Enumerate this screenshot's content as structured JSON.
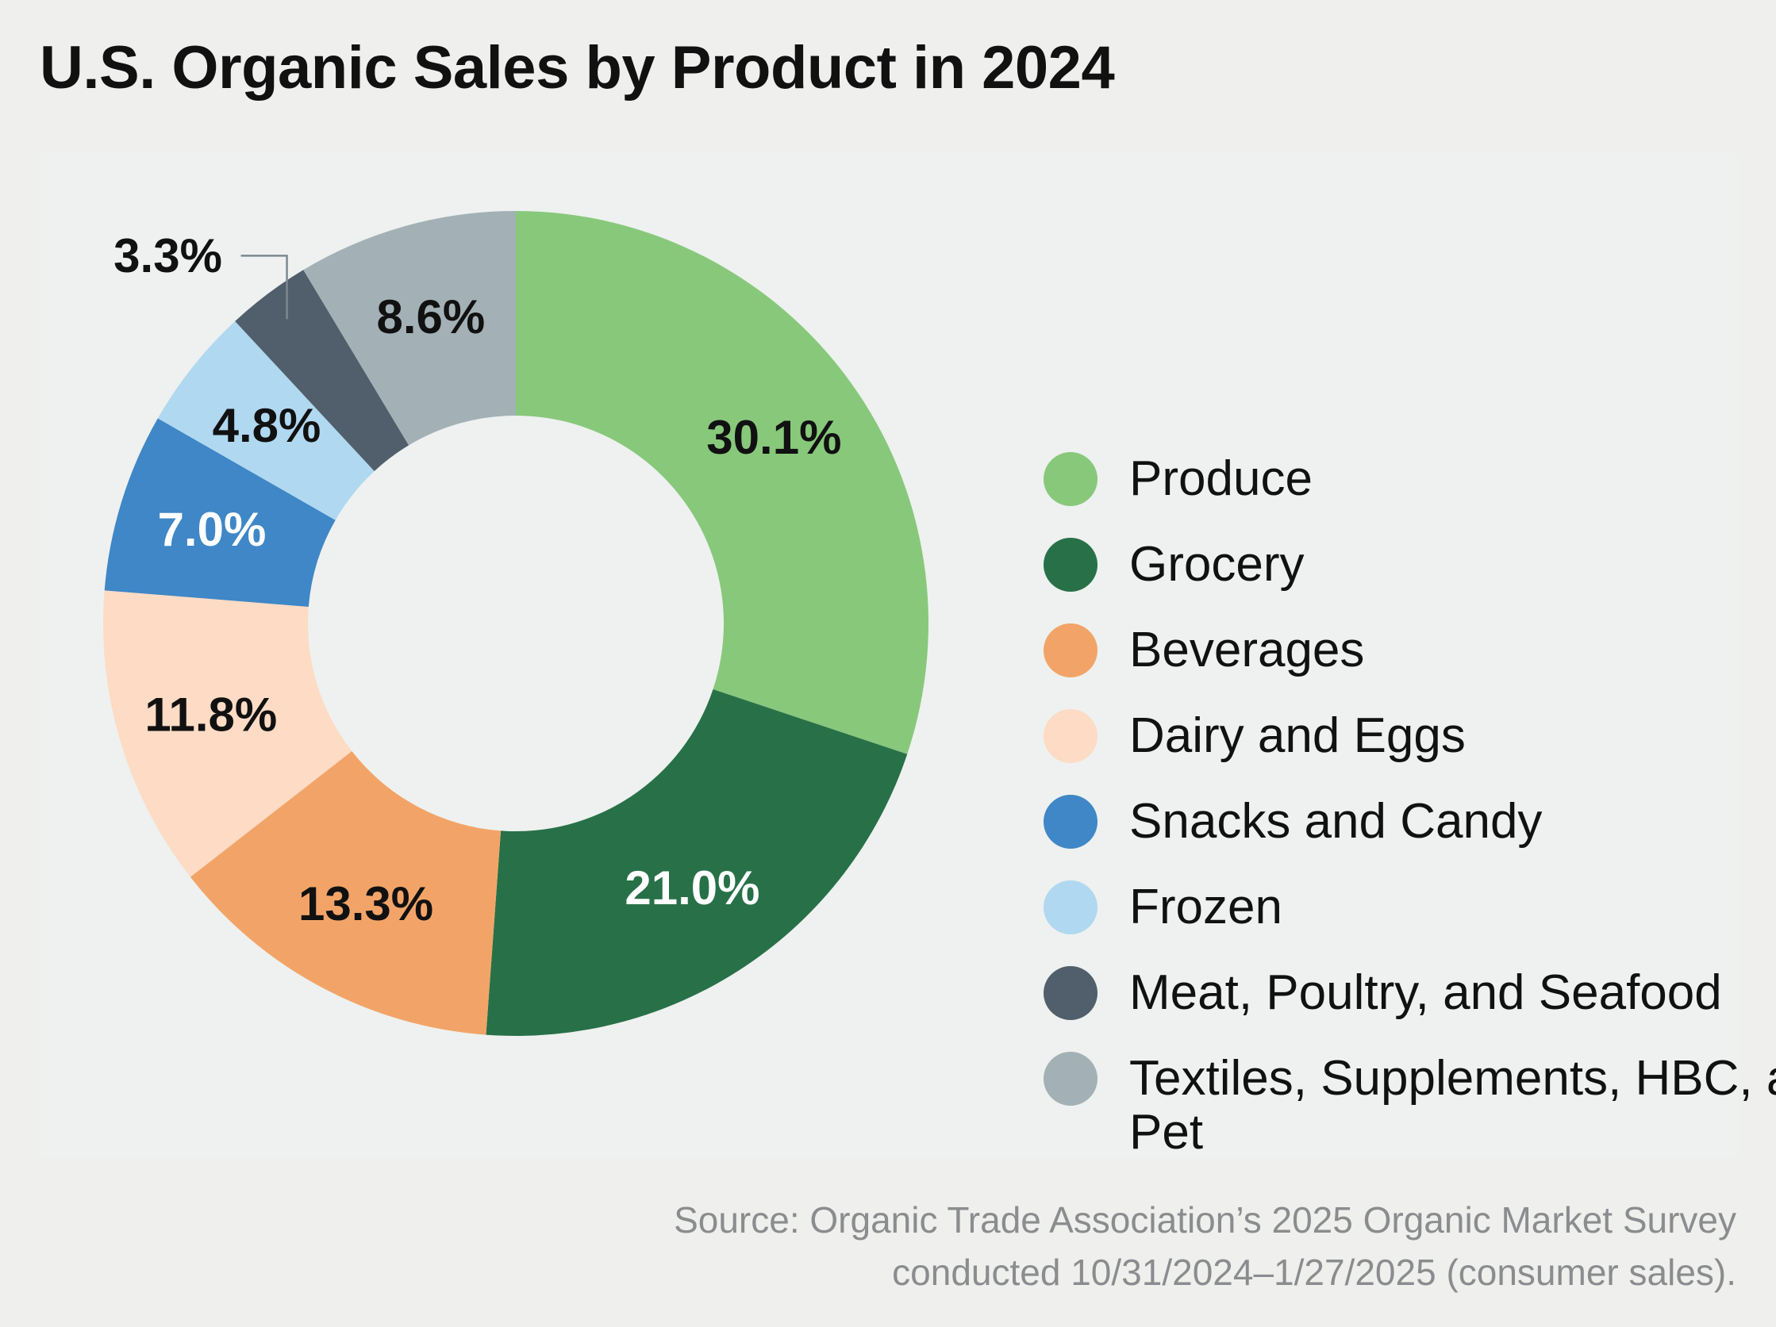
{
  "title": "U.S. Organic Sales by Product in 2024",
  "chart_data": {
    "type": "pie",
    "variant": "donut",
    "title": "U.S. Organic Sales by Product in 2024",
    "unit": "%",
    "legend_position": "right",
    "slices": [
      {
        "label": "Produce",
        "value": 30.1,
        "display": "30.1%",
        "color": "#88c87b",
        "label_color": "#111111"
      },
      {
        "label": "Grocery",
        "value": 21.0,
        "display": "21.0%",
        "color": "#287148",
        "label_color": "#ffffff"
      },
      {
        "label": "Beverages",
        "value": 13.3,
        "display": "13.3%",
        "color": "#f2a468",
        "label_color": "#111111"
      },
      {
        "label": "Dairy and Eggs",
        "value": 11.8,
        "display": "11.8%",
        "color": "#fddbc4",
        "label_color": "#111111"
      },
      {
        "label": "Snacks and Candy",
        "value": 7.0,
        "display": "7.0%",
        "color": "#3f87c6",
        "label_color": "#ffffff"
      },
      {
        "label": "Frozen",
        "value": 4.8,
        "display": "4.8%",
        "color": "#b0d8f0",
        "label_color": "#111111"
      },
      {
        "label": "Meat, Poultry, and Seafood",
        "value": 3.3,
        "display": "3.3%",
        "color": "#515f6c",
        "label_color": "#111111"
      },
      {
        "label": "Textiles, Supplements, HBC, and Pet",
        "value": 8.6,
        "display": "8.6%",
        "color": "#a3b1b6",
        "label_color": "#111111"
      }
    ]
  },
  "legend": {
    "items": [
      {
        "label": "Produce",
        "color": "#88c87b"
      },
      {
        "label": "Grocery",
        "color": "#287148"
      },
      {
        "label": "Beverages",
        "color": "#f2a468"
      },
      {
        "label": "Dairy and Eggs",
        "color": "#fddbc4"
      },
      {
        "label": "Snacks and Candy",
        "color": "#3f87c6"
      },
      {
        "label": "Frozen",
        "color": "#b0d8f0"
      },
      {
        "label": "Meat, Poultry, and Seafood",
        "color": "#515f6c"
      },
      {
        "label": "Textiles, Supplements, HBC, and Pet",
        "color": "#a3b1b6"
      }
    ]
  },
  "source": {
    "line1": "Source: Organic Trade Association’s 2025 Organic Market Survey",
    "line2": "conducted 10/31/2024–1/27/2025 (consumer sales)."
  }
}
